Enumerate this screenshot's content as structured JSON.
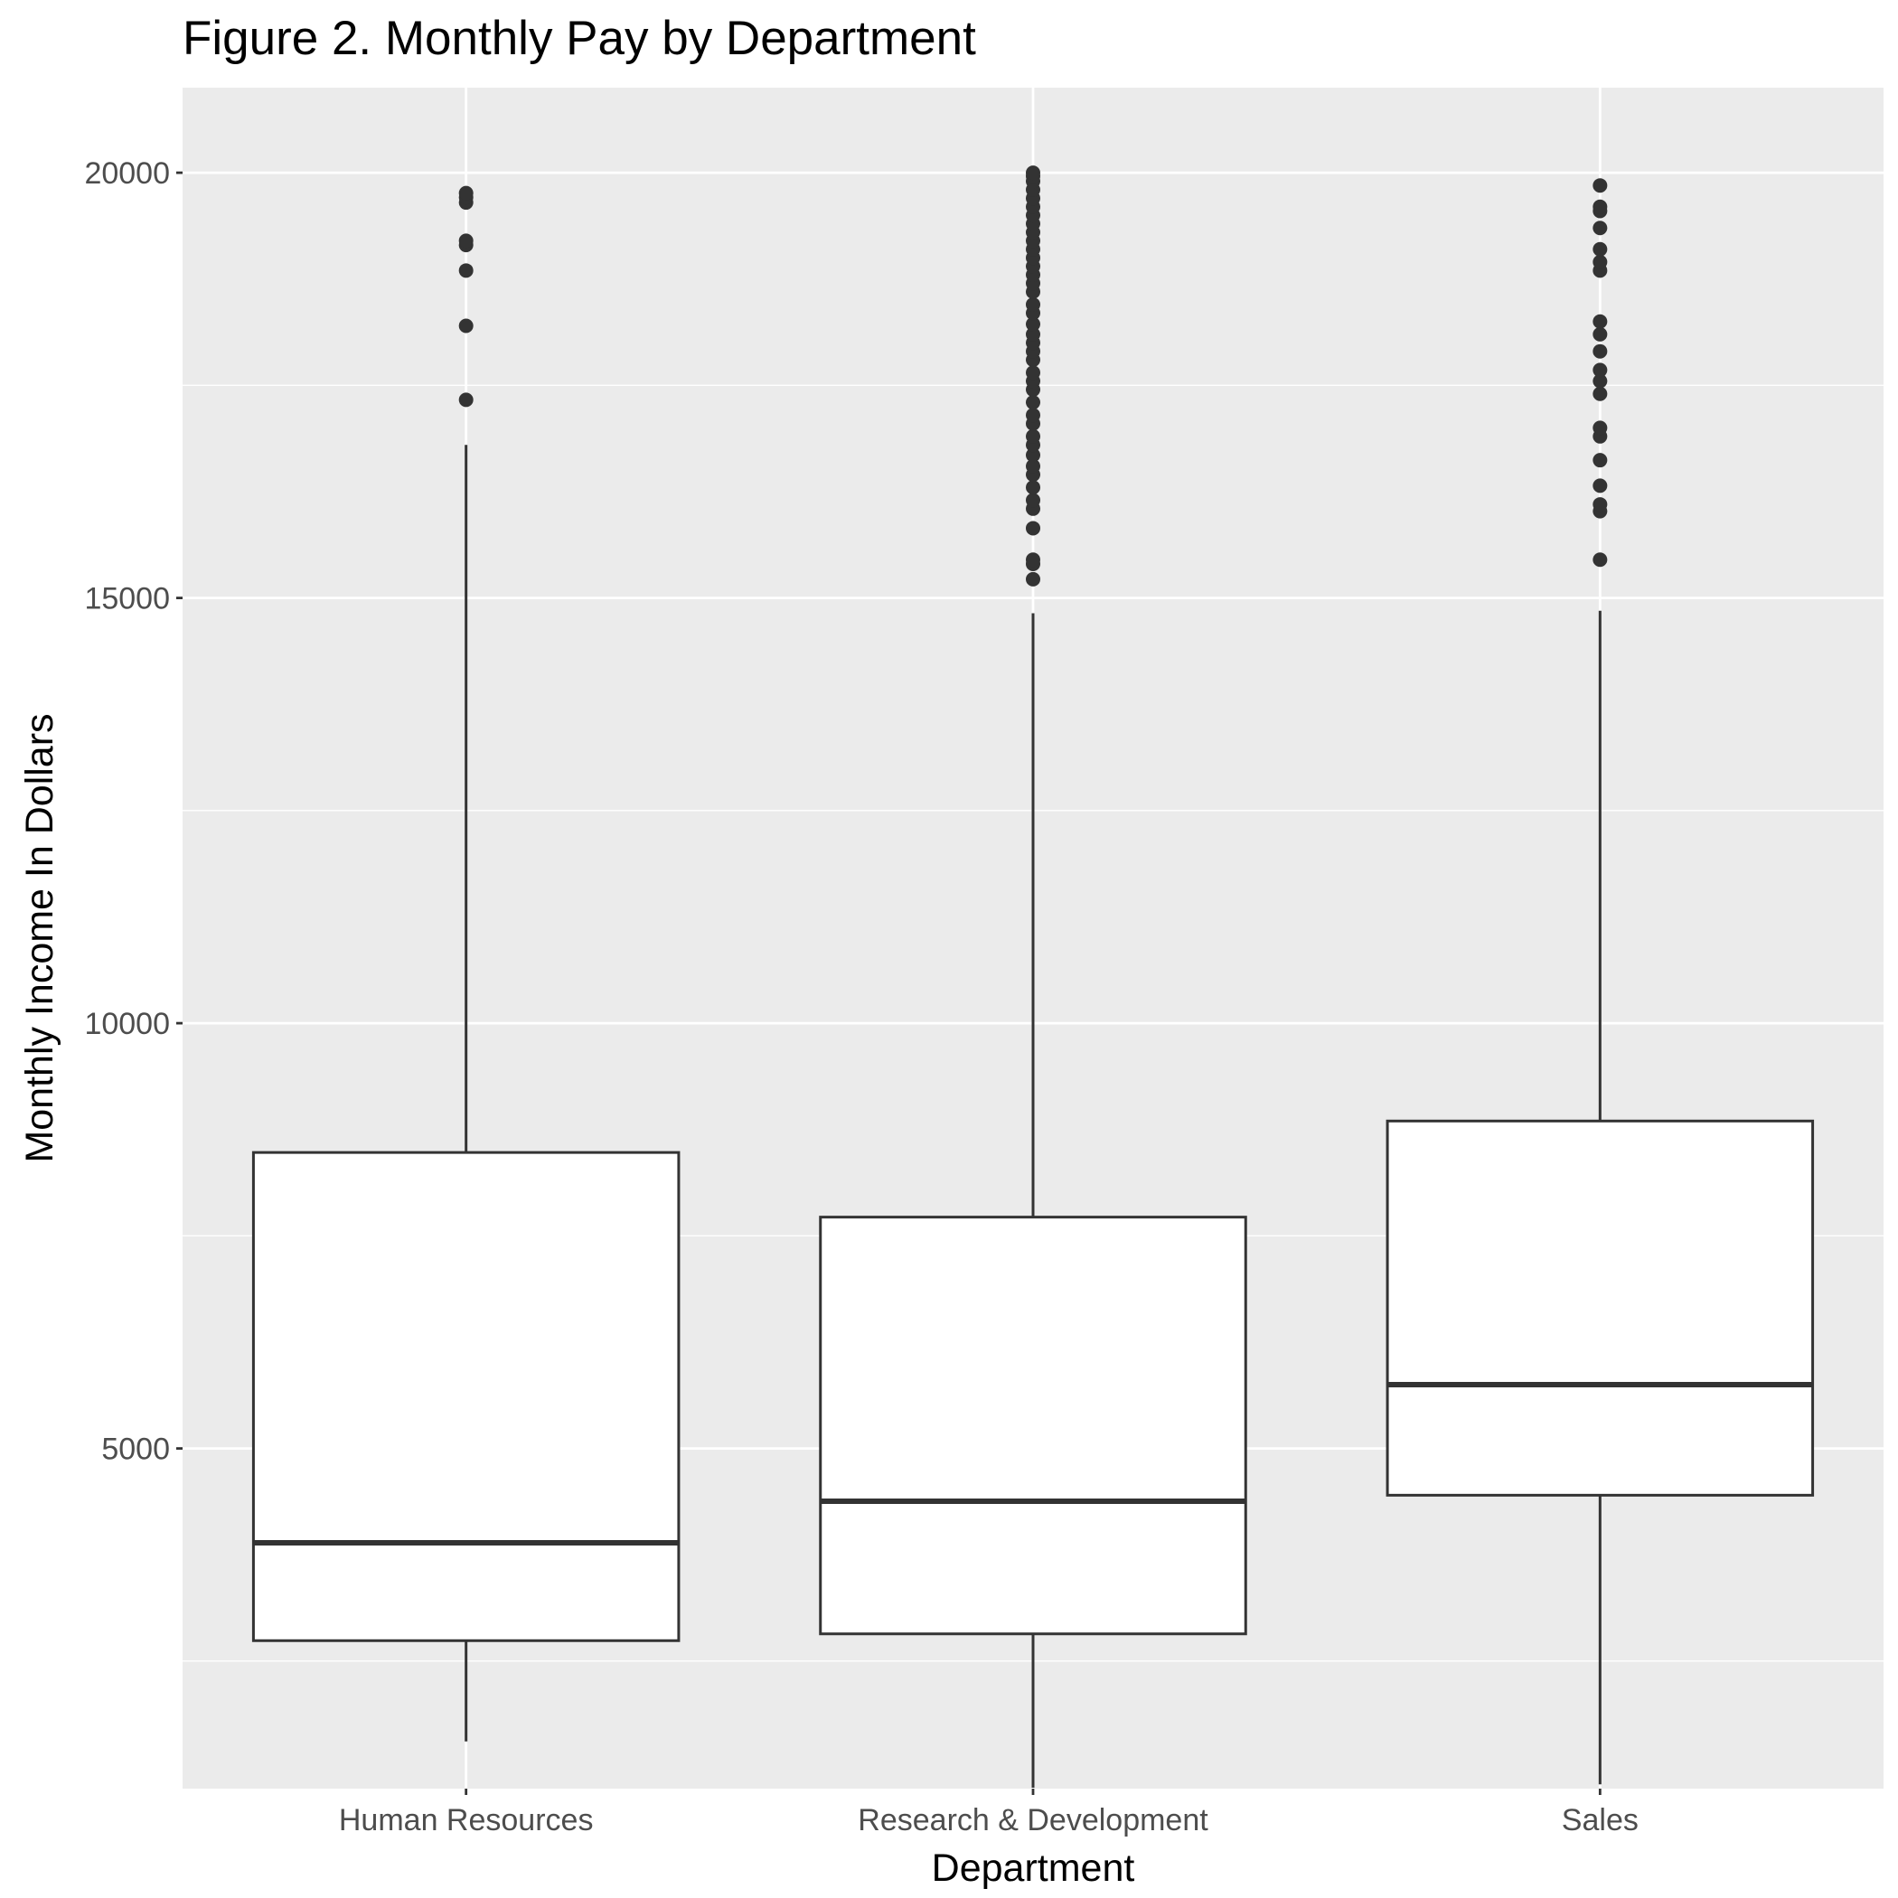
{
  "chart_data": {
    "type": "box",
    "title": "Figure 2. Monthly Pay by Department",
    "xlabel": "Department",
    "ylabel": "Monthly Income In Dollars",
    "ylim": [
      1000,
      21000
    ],
    "yticks": [
      5000,
      10000,
      15000,
      20000
    ],
    "ytick_labels": [
      "5000",
      "10000",
      "15000",
      "20000"
    ],
    "grid": true,
    "legend": "none",
    "categories": [
      "Human Resources",
      "Research & Development",
      "Sales"
    ],
    "boxes": [
      {
        "category": "Human Resources",
        "whisker_low": 1555,
        "q1": 2740,
        "median": 3890,
        "q3": 8480,
        "whisker_high": 16800,
        "outliers": [
          17330,
          18200,
          18850,
          19150,
          19200,
          19650,
          19710,
          19760
        ]
      },
      {
        "category": "Research & Development",
        "whisker_low": 1010,
        "q1": 2820,
        "median": 4380,
        "q3": 7720,
        "whisker_high": 14820,
        "outliers": [
          15220,
          15400,
          15450,
          15820,
          16050,
          16150,
          16300,
          16450,
          16550,
          16680,
          16800,
          16900,
          17050,
          17150,
          17300,
          17450,
          17550,
          17650,
          17800,
          17900,
          18000,
          18100,
          18220,
          18350,
          18450,
          18600,
          18700,
          18800,
          18900,
          19000,
          19100,
          19200,
          19300,
          19400,
          19500,
          19600,
          19700,
          19800,
          19900,
          19960,
          20000
        ]
      },
      {
        "category": "Sales",
        "whisker_low": 1050,
        "q1": 4450,
        "median": 5750,
        "q3": 8850,
        "whisker_high": 14850,
        "outliers": [
          15450,
          16020,
          16100,
          16320,
          16620,
          16900,
          17000,
          17400,
          17550,
          17680,
          17900,
          18100,
          18250,
          18850,
          18950,
          19100,
          19350,
          19550,
          19600,
          19850
        ]
      }
    ]
  }
}
